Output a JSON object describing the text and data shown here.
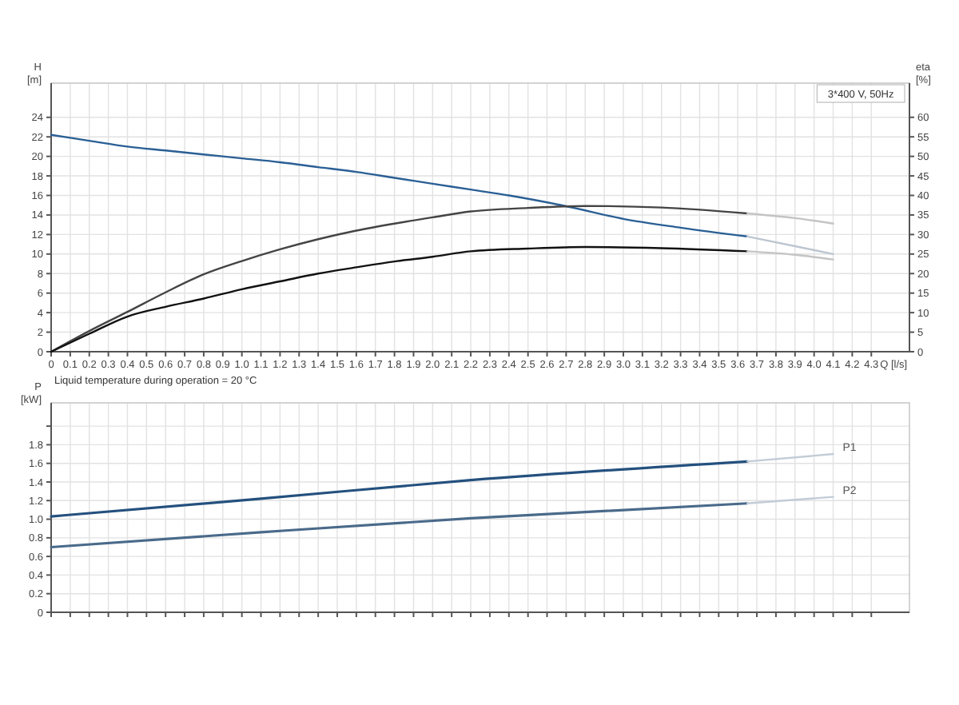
{
  "chart_data": [
    {
      "type": "line",
      "xlabel": "Q [l/s]",
      "ylabel": "H [m]",
      "y2label": "eta [%]",
      "xlim": [
        0,
        4.5
      ],
      "ylim": [
        0,
        27.5
      ],
      "y2lim": [
        0,
        68.75
      ],
      "xticks": [
        0,
        0.1,
        0.2,
        0.3,
        0.4,
        0.5,
        0.6,
        0.7,
        0.8,
        0.9,
        {
          "value": 1,
          "label": "1.0"
        },
        1.1,
        1.2,
        1.3,
        1.4,
        1.5,
        1.6,
        1.7,
        1.8,
        1.9,
        {
          "value": 2,
          "label": "2.0"
        },
        2.1,
        2.2,
        2.3,
        2.4,
        2.5,
        2.6,
        2.7,
        2.8,
        2.9,
        {
          "value": 3,
          "label": "3.0"
        },
        3.1,
        3.2,
        3.3,
        3.4,
        3.5,
        3.6,
        3.7,
        3.8,
        3.9,
        {
          "value": 4,
          "label": "4.0"
        },
        4.1,
        4.2,
        4.3
      ],
      "yticks": [
        0,
        2,
        4,
        6,
        8,
        10,
        12,
        14,
        16,
        18,
        20,
        22,
        24
      ],
      "y2ticks": [
        0,
        5,
        10,
        15,
        20,
        25,
        30,
        35,
        40,
        45,
        50,
        55,
        60
      ],
      "grid": true,
      "marker": "none",
      "line_style": "solid",
      "annotations": [
        "Liquid temperature during operation = 20 °C",
        "3*400 V, 50Hz"
      ],
      "series": [
        {
          "color": "#2a5f95",
          "x": [
            0,
            0.2,
            0.4,
            0.6,
            0.8,
            1.0,
            1.2,
            1.4,
            1.6,
            1.8,
            2.0,
            2.2,
            2.4,
            2.7,
            3.0,
            3.3,
            3.65
          ],
          "values": [
            22.2,
            21.6,
            21.0,
            20.6,
            20.2,
            19.8,
            19.4,
            18.9,
            18.4,
            17.8,
            17.2,
            16.6,
            16.0,
            14.9,
            13.6,
            12.7,
            11.8
          ]
        },
        {
          "color": "#bcc6d0",
          "x": [
            3.65,
            3.9,
            4.1
          ],
          "values": [
            11.8,
            10.8,
            10.0
          ]
        },
        {
          "color": "#444444",
          "axis": "y2",
          "x": [
            0,
            0.2,
            0.4,
            0.6,
            0.8,
            1.0,
            1.2,
            1.4,
            1.6,
            1.8,
            2.0,
            2.2,
            2.5,
            2.8,
            3.2,
            3.65
          ],
          "values": [
            0,
            5.3,
            10.2,
            15.2,
            19.8,
            23.2,
            26.2,
            28.8,
            31,
            32.8,
            34.4,
            35.9,
            36.8,
            37.3,
            36.9,
            35.4
          ]
        },
        {
          "color": "#c4c4c4",
          "axis": "y2",
          "x": [
            3.65,
            3.9,
            4.1
          ],
          "values": [
            35.4,
            34.2,
            32.8
          ]
        },
        {
          "color": "#111111",
          "axis": "y2",
          "x": [
            0,
            0.2,
            0.4,
            0.6,
            0.8,
            1.0,
            1.2,
            1.4,
            1.6,
            1.8,
            2.0,
            2.2,
            2.5,
            2.8,
            3.2,
            3.65
          ],
          "values": [
            0,
            4.6,
            9,
            11.5,
            13.6,
            16,
            18,
            20,
            21.6,
            23.1,
            24.3,
            25.7,
            26.4,
            26.8,
            26.5,
            25.7
          ]
        },
        {
          "color": "#c4c4c4",
          "axis": "y2",
          "x": [
            3.65,
            3.9,
            4.1
          ],
          "values": [
            25.7,
            24.8,
            23.6
          ]
        }
      ]
    },
    {
      "type": "line",
      "ylabel": "P [kW]",
      "xlim": [
        0,
        4.5
      ],
      "ylim": [
        0,
        2.25
      ],
      "xticks": [
        0,
        0.1,
        0.2,
        0.3,
        0.4,
        0.5,
        0.6,
        0.7,
        0.8,
        0.9,
        1,
        1.1,
        1.2,
        1.3,
        1.4,
        1.5,
        1.6,
        1.7,
        1.8,
        1.9,
        2,
        2.1,
        2.2,
        2.3,
        2.4,
        2.5,
        2.6,
        2.7,
        2.8,
        2.9,
        3,
        3.1,
        3.2,
        3.3,
        3.4,
        3.5,
        3.6,
        3.7,
        3.8,
        3.9,
        4,
        4.1,
        4.2,
        4.3
      ],
      "yticks": [
        0,
        0.2,
        0.4,
        0.6,
        0.8,
        {
          "value": 1,
          "label": "1.0"
        },
        1.2,
        1.4,
        1.6,
        1.8,
        {
          "value": 2,
          "label": null
        }
      ],
      "tick_labels": "y",
      "grid": true,
      "marker": "none",
      "line_style": "solid",
      "series": [
        {
          "name": "P1",
          "color": "#24507e",
          "x": [
            0,
            1.1,
            2.2,
            3.65
          ],
          "values": [
            1.03,
            1.22,
            1.42,
            1.62
          ]
        },
        {
          "color": "#c2ccd6",
          "x": [
            3.65,
            4.1
          ],
          "values": [
            1.62,
            1.7
          ]
        },
        {
          "name": "P2",
          "color": "#4a6a8a",
          "x": [
            0,
            1.1,
            2.2,
            3.65
          ],
          "values": [
            0.7,
            0.86,
            1.01,
            1.17
          ]
        },
        {
          "color": "#c2ccd6",
          "x": [
            3.65,
            4.1
          ],
          "values": [
            1.17,
            1.24
          ]
        }
      ]
    }
  ]
}
